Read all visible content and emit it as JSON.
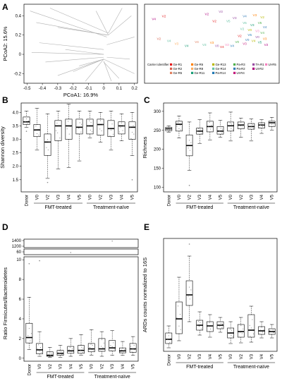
{
  "panel_labels": {
    "a": "A",
    "b": "B",
    "c": "C",
    "d": "D",
    "e": "E"
  },
  "colors": {
    "box": "#000000",
    "frame": "#000000",
    "pca_lines": "#b0b0b0",
    "pca_labels": "#0000cc"
  },
  "chart_data": [
    {
      "id": "A_left",
      "type": "scatter",
      "xlabel": "PCoA1: 16.9%",
      "ylabel": "PCoA2: 15.6%",
      "xlim": [
        -0.52,
        0.22
      ],
      "ylim": [
        -0.3,
        0.52
      ],
      "xticks": [
        "-0.5",
        "-0.4",
        "-0.3",
        "-0.2",
        "-0.1",
        "0",
        "0.1",
        "0.2"
      ],
      "xtick_values": [
        -0.5,
        -0.4,
        -0.3,
        -0.2,
        -0.1,
        0,
        0.1,
        0.2
      ],
      "yticks": [
        "-0.2",
        "0",
        "0.2",
        "0.4"
      ],
      "ytick_values": [
        -0.2,
        0,
        0.2,
        0.4
      ],
      "center_labels": [
        {
          "text": "V2",
          "x": 0.03,
          "y": 0.22
        },
        {
          "text": "V0",
          "x": 0.01,
          "y": -0.02
        },
        {
          "text": "V4",
          "x": -0.02,
          "y": -0.07
        },
        {
          "text": "V5",
          "x": 0.0,
          "y": -0.07
        },
        {
          "text": "V3",
          "x": 0.015,
          "y": -0.05
        }
      ],
      "segments": [
        [
          -0.48,
          0.45,
          0.02,
          0.18
        ],
        [
          -0.44,
          0.33,
          0.02,
          0.2
        ],
        [
          -0.35,
          0.48,
          0.03,
          0.22
        ],
        [
          -0.42,
          0.12,
          0.0,
          0.05
        ],
        [
          -0.47,
          0.02,
          0.0,
          0.0
        ],
        [
          -0.38,
          -0.08,
          0.0,
          -0.03
        ],
        [
          -0.3,
          -0.22,
          0.0,
          -0.05
        ],
        [
          -0.12,
          -0.28,
          0.0,
          -0.05
        ],
        [
          -0.2,
          -0.18,
          0.0,
          -0.05
        ],
        [
          0.18,
          0.4,
          0.03,
          0.2
        ],
        [
          0.2,
          0.18,
          0.02,
          0.1
        ],
        [
          0.17,
          -0.05,
          0.02,
          -0.03
        ],
        [
          0.1,
          -0.25,
          0.0,
          -0.08
        ],
        [
          0.2,
          -0.2,
          0.0,
          -0.05
        ],
        [
          -0.25,
          0.05,
          0.0,
          0.0
        ],
        [
          -0.3,
          0.28,
          0.03,
          0.2
        ],
        [
          -0.05,
          0.45,
          0.03,
          0.2
        ],
        [
          0.12,
          0.48,
          0.03,
          0.22
        ],
        [
          -0.16,
          -0.12,
          0.0,
          -0.05
        ],
        [
          0.05,
          -0.28,
          0.0,
          -0.07
        ]
      ]
    },
    {
      "id": "A_right",
      "type": "scatter",
      "legend_title": "Carrier identifier",
      "legend": [
        {
          "name": "Ge-R1",
          "color": "#e41a1c"
        },
        {
          "name": "Ge-R6",
          "color": "#ff7f00"
        },
        {
          "name": "Ge-R13",
          "color": "#b8b800"
        },
        {
          "name": "Pa-R3",
          "color": "#4daf4a"
        },
        {
          "name": "TA-R1",
          "color": "#984ea3"
        },
        {
          "name": "Ut-R5",
          "color": "#f781bf"
        },
        {
          "name": "Ge-R2",
          "color": "#d6604d"
        },
        {
          "name": "Ge-R8",
          "color": "#fdae61"
        },
        {
          "name": "Ge-R14",
          "color": "#66c2a5"
        },
        {
          "name": "Pa-R2",
          "color": "#377eb8"
        },
        {
          "name": "Ut-R2",
          "color": "#ae017e"
        },
        {
          "name": "Ge-R5",
          "color": "#e08060"
        },
        {
          "name": "Ge-R11",
          "color": "#1b9e77"
        },
        {
          "name": "Pa-R14",
          "color": "#1f78b4"
        },
        {
          "name": "Ut-R4",
          "color": "#c51b7d"
        }
      ],
      "points": [
        {
          "t": "V4",
          "x": 0.04,
          "y": 0.82,
          "c": "#ae017e"
        },
        {
          "t": "V2",
          "x": 0.12,
          "y": 0.88,
          "c": "#e41a1c"
        },
        {
          "t": "V2",
          "x": 0.46,
          "y": 0.92,
          "c": "#ae017e"
        },
        {
          "t": "V3",
          "x": 0.57,
          "y": 0.97,
          "c": "#984ea3"
        },
        {
          "t": "V2",
          "x": 0.52,
          "y": 0.78,
          "c": "#e41a1c"
        },
        {
          "t": "V5",
          "x": 0.63,
          "y": 0.78,
          "c": "#66c2a5"
        },
        {
          "t": "V3",
          "x": 0.68,
          "y": 0.84,
          "c": "#984ea3"
        },
        {
          "t": "V4",
          "x": 0.76,
          "y": 0.88,
          "c": "#377eb8"
        },
        {
          "t": "V3",
          "x": 0.84,
          "y": 0.9,
          "c": "#ff7f00"
        },
        {
          "t": "V2",
          "x": 0.9,
          "y": 0.86,
          "c": "#b8b800"
        },
        {
          "t": "V5",
          "x": 0.76,
          "y": 0.74,
          "c": "#66c2a5"
        },
        {
          "t": "V3",
          "x": 0.82,
          "y": 0.7,
          "c": "#1b9e77"
        },
        {
          "t": "V5",
          "x": 0.88,
          "y": 0.74,
          "c": "#4daf4a"
        },
        {
          "t": "V4",
          "x": 0.92,
          "y": 0.66,
          "c": "#377eb8"
        },
        {
          "t": "V0",
          "x": 0.8,
          "y": 0.6,
          "c": "#b8b800"
        },
        {
          "t": "V2",
          "x": 0.74,
          "y": 0.62,
          "c": "#66c2a5"
        },
        {
          "t": "V3",
          "x": 0.86,
          "y": 0.58,
          "c": "#f781bf"
        },
        {
          "t": "V4",
          "x": 0.9,
          "y": 0.54,
          "c": "#4daf4a"
        },
        {
          "t": "V5",
          "x": 0.8,
          "y": 0.5,
          "c": "#1f78b4"
        },
        {
          "t": "V0",
          "x": 0.86,
          "y": 0.46,
          "c": "#984ea3"
        },
        {
          "t": "V2",
          "x": 0.72,
          "y": 0.48,
          "c": "#e41a1c"
        },
        {
          "t": "V3",
          "x": 0.92,
          "y": 0.42,
          "c": "#ff7f00"
        },
        {
          "t": "V0",
          "x": 0.78,
          "y": 0.4,
          "c": "#377eb8"
        },
        {
          "t": "V4",
          "x": 0.83,
          "y": 0.38,
          "c": "#b8b800"
        },
        {
          "t": "V5",
          "x": 0.88,
          "y": 0.35,
          "c": "#1b9e77"
        },
        {
          "t": "V2",
          "x": 0.93,
          "y": 0.3,
          "c": "#ae017e"
        },
        {
          "t": "V3",
          "x": 0.76,
          "y": 0.32,
          "c": "#c51b7d"
        },
        {
          "t": "V0",
          "x": 0.7,
          "y": 0.36,
          "c": "#4daf4a"
        },
        {
          "t": "V4",
          "x": 0.66,
          "y": 0.28,
          "c": "#1f78b4"
        },
        {
          "t": "V2",
          "x": 0.62,
          "y": 0.3,
          "c": "#f781bf"
        },
        {
          "t": "V4",
          "x": 0.58,
          "y": 0.26,
          "c": "#e41a1c"
        },
        {
          "t": "V0",
          "x": 0.54,
          "y": 0.28,
          "c": "#984ea3"
        },
        {
          "t": "V2",
          "x": 0.08,
          "y": 0.42,
          "c": "#d6604d"
        },
        {
          "t": "V4",
          "x": 0.16,
          "y": 0.38,
          "c": "#66c2a5"
        },
        {
          "t": "V3",
          "x": 0.22,
          "y": 0.32,
          "c": "#fdae61"
        },
        {
          "t": "V3",
          "x": 0.44,
          "y": 0.3,
          "c": "#66c2a5"
        },
        {
          "t": "V4",
          "x": 0.38,
          "y": 0.36,
          "c": "#e08060"
        },
        {
          "t": "V4",
          "x": 0.3,
          "y": 0.28,
          "c": "#1b9e77"
        },
        {
          "t": "V3",
          "x": 0.5,
          "y": 0.34,
          "c": "#ff7f00"
        }
      ]
    },
    {
      "id": "B",
      "type": "box",
      "ylabel": "Shannon diversity",
      "ylim": [
        1.05,
        4.35
      ],
      "yticks": [
        "1.5",
        "2.0",
        "2.5",
        "3.0",
        "3.5",
        "4.0"
      ],
      "ytick_values": [
        1.5,
        2.0,
        2.5,
        3.0,
        3.5,
        4.0
      ],
      "categories": [
        "Donor",
        "V0",
        "V2",
        "V3",
        "V4",
        "V5",
        "V0",
        "V2",
        "V3",
        "V4",
        "V5"
      ],
      "groups": [
        {
          "name": "FMT-treated",
          "from": 1,
          "to": 5
        },
        {
          "name": "Treatment-naïve",
          "from": 6,
          "to": 10
        }
      ],
      "boxes": [
        {
          "min": 3.45,
          "q1": 3.55,
          "med": 3.65,
          "q3": 3.83,
          "max": 4.05,
          "out": [
            3.3
          ]
        },
        {
          "min": 2.6,
          "q1": 3.1,
          "med": 3.35,
          "q3": 3.55,
          "max": 4.15,
          "out": []
        },
        {
          "min": 1.55,
          "q1": 2.4,
          "med": 2.9,
          "q3": 3.2,
          "max": 3.95,
          "out": [
            1.4
          ]
        },
        {
          "min": 1.9,
          "q1": 2.95,
          "med": 3.5,
          "q3": 3.7,
          "max": 4.05,
          "out": []
        },
        {
          "min": 1.95,
          "q1": 3.0,
          "med": 3.5,
          "q3": 3.75,
          "max": 4.3,
          "out": []
        },
        {
          "min": 2.2,
          "q1": 3.2,
          "med": 3.45,
          "q3": 3.75,
          "max": 4.05,
          "out": []
        },
        {
          "min": 3.05,
          "q1": 3.2,
          "med": 3.5,
          "q3": 3.75,
          "max": 4.05,
          "out": []
        },
        {
          "min": 2.9,
          "q1": 3.15,
          "med": 3.55,
          "q3": 3.75,
          "max": 4.0,
          "out": []
        },
        {
          "min": 2.6,
          "q1": 3.1,
          "med": 3.4,
          "q3": 3.7,
          "max": 4.05,
          "out": []
        },
        {
          "min": 2.95,
          "q1": 3.2,
          "med": 3.5,
          "q3": 3.65,
          "max": 3.95,
          "out": []
        },
        {
          "min": 2.4,
          "q1": 3.0,
          "med": 3.45,
          "q3": 3.65,
          "max": 4.0,
          "out": [
            1.5
          ]
        }
      ]
    },
    {
      "id": "C",
      "type": "box",
      "ylabel": "Richness",
      "ylim": [
        88,
        322
      ],
      "yticks": [
        "100",
        "150",
        "200",
        "250",
        "300"
      ],
      "ytick_values": [
        100,
        150,
        200,
        250,
        300
      ],
      "categories": [
        "Donor",
        "V0",
        "V2",
        "V3",
        "V4",
        "V5",
        "V0",
        "V2",
        "V3",
        "V4",
        "V5"
      ],
      "groups": [
        {
          "name": "FMT-treated",
          "from": 1,
          "to": 5
        },
        {
          "name": "Treatment-naïve",
          "from": 6,
          "to": 10
        }
      ],
      "boxes": [
        {
          "min": 245,
          "q1": 249,
          "med": 254,
          "q3": 258,
          "max": 262,
          "out": []
        },
        {
          "min": 230,
          "q1": 248,
          "med": 266,
          "q3": 274,
          "max": 288,
          "out": []
        },
        {
          "min": 145,
          "q1": 183,
          "med": 210,
          "q3": 238,
          "max": 272,
          "out": [
            105
          ]
        },
        {
          "min": 215,
          "q1": 240,
          "med": 248,
          "q3": 256,
          "max": 278,
          "out": []
        },
        {
          "min": 225,
          "q1": 246,
          "med": 260,
          "q3": 274,
          "max": 296,
          "out": []
        },
        {
          "min": 232,
          "q1": 240,
          "med": 248,
          "q3": 260,
          "max": 276,
          "out": []
        },
        {
          "min": 222,
          "q1": 248,
          "med": 262,
          "q3": 272,
          "max": 298,
          "out": []
        },
        {
          "min": 232,
          "q1": 254,
          "med": 264,
          "q3": 272,
          "max": 282,
          "out": []
        },
        {
          "min": 222,
          "q1": 253,
          "med": 260,
          "q3": 268,
          "max": 280,
          "out": []
        },
        {
          "min": 242,
          "q1": 256,
          "med": 264,
          "q3": 270,
          "max": 278,
          "out": []
        },
        {
          "min": 250,
          "q1": 260,
          "med": 270,
          "q3": 274,
          "max": 284,
          "out": []
        }
      ]
    },
    {
      "id": "D",
      "type": "box",
      "ylabel": "Ratio Firmicutes/Bacteroidetes",
      "broken_axis": true,
      "upper_yticks": [
        "1400",
        "1200"
      ],
      "upper_ytick_values": [
        1400,
        1200
      ],
      "mid_yticks": [
        "60"
      ],
      "mid_ytick_values": [
        60
      ],
      "ylim": [
        -0.3,
        10.3
      ],
      "yticks": [
        "0",
        "2",
        "4",
        "6",
        "8",
        "10"
      ],
      "ytick_values": [
        0,
        2,
        4,
        6,
        8,
        10
      ],
      "categories": [
        "Donor",
        "V0",
        "V2",
        "V3",
        "V4",
        "V5",
        "V0",
        "V2",
        "V3",
        "V4",
        "V5"
      ],
      "groups": [
        {
          "name": "FMT-treated",
          "from": 1,
          "to": 5
        },
        {
          "name": "Treatment-naïve",
          "from": 6,
          "to": 10
        }
      ],
      "boxes": [
        {
          "min": 0.9,
          "q1": 1.55,
          "med": 2.1,
          "q3": 3.55,
          "max": 6.2,
          "out": [
            9.6
          ]
        },
        {
          "min": 0.2,
          "q1": 0.45,
          "med": 0.85,
          "q3": 1.5,
          "max": 2.7,
          "out": [
            9.9
          ]
        },
        {
          "min": 0.1,
          "q1": 0.2,
          "med": 0.3,
          "q3": 0.65,
          "max": 1.1,
          "out": []
        },
        {
          "min": 0.1,
          "q1": 0.3,
          "med": 0.5,
          "q3": 0.8,
          "max": 1.3,
          "out": []
        },
        {
          "min": 0.2,
          "q1": 0.5,
          "med": 0.75,
          "q3": 1.2,
          "max": 2.0,
          "out": []
        },
        {
          "min": 0.3,
          "q1": 0.5,
          "med": 0.8,
          "q3": 1.3,
          "max": 2.4,
          "out": []
        },
        {
          "min": 0.3,
          "q1": 0.65,
          "med": 0.95,
          "q3": 1.5,
          "max": 2.9,
          "out": []
        },
        {
          "min": 0.2,
          "q1": 0.7,
          "med": 0.95,
          "q3": 2.0,
          "max": 2.7,
          "out": []
        },
        {
          "min": 0.3,
          "q1": 0.75,
          "med": 1.05,
          "q3": 1.8,
          "max": 2.8,
          "out": []
        },
        {
          "min": 0.3,
          "q1": 0.55,
          "med": 0.75,
          "q3": 1.05,
          "max": 1.7,
          "out": []
        },
        {
          "min": 0.3,
          "q1": 0.6,
          "med": 0.95,
          "q3": 1.5,
          "max": 2.2,
          "out": []
        }
      ]
    },
    {
      "id": "E",
      "type": "box",
      "ylabel": "ARDs counts normalized to 16S",
      "ylim": [
        0,
        1600
      ],
      "categories": [
        "Donor",
        "V0",
        "V2",
        "V3",
        "V4",
        "V5",
        "V0",
        "V2",
        "V3",
        "V4",
        "V5"
      ],
      "groups": [
        {
          "name": "FMT-treated",
          "from": 1,
          "to": 5
        },
        {
          "name": "Treatment-naïve",
          "from": 6,
          "to": 10
        }
      ],
      "boxes": [
        {
          "min": 50,
          "q1": 110,
          "med": 170,
          "q3": 260,
          "max": 360,
          "out": []
        },
        {
          "min": 150,
          "q1": 250,
          "med": 460,
          "q3": 700,
          "max": 1050,
          "out": []
        },
        {
          "min": 420,
          "q1": 650,
          "med": 800,
          "q3": 1000,
          "max": 1350,
          "out": [
            1520
          ]
        },
        {
          "min": 230,
          "q1": 300,
          "med": 370,
          "q3": 440,
          "max": 560,
          "out": []
        },
        {
          "min": 200,
          "q1": 280,
          "med": 360,
          "q3": 420,
          "max": 520,
          "out": []
        },
        {
          "min": 270,
          "q1": 320,
          "med": 370,
          "q3": 420,
          "max": 480,
          "out": []
        },
        {
          "min": 110,
          "q1": 190,
          "med": 260,
          "q3": 330,
          "max": 420,
          "out": []
        },
        {
          "min": 120,
          "q1": 200,
          "med": 280,
          "q3": 380,
          "max": 480,
          "out": []
        },
        {
          "min": 130,
          "q1": 200,
          "med": 300,
          "q3": 520,
          "max": 640,
          "out": []
        },
        {
          "min": 190,
          "q1": 240,
          "med": 290,
          "q3": 350,
          "max": 420,
          "out": []
        },
        {
          "min": 190,
          "q1": 240,
          "med": 280,
          "q3": 320,
          "max": 380,
          "out": []
        }
      ]
    }
  ]
}
